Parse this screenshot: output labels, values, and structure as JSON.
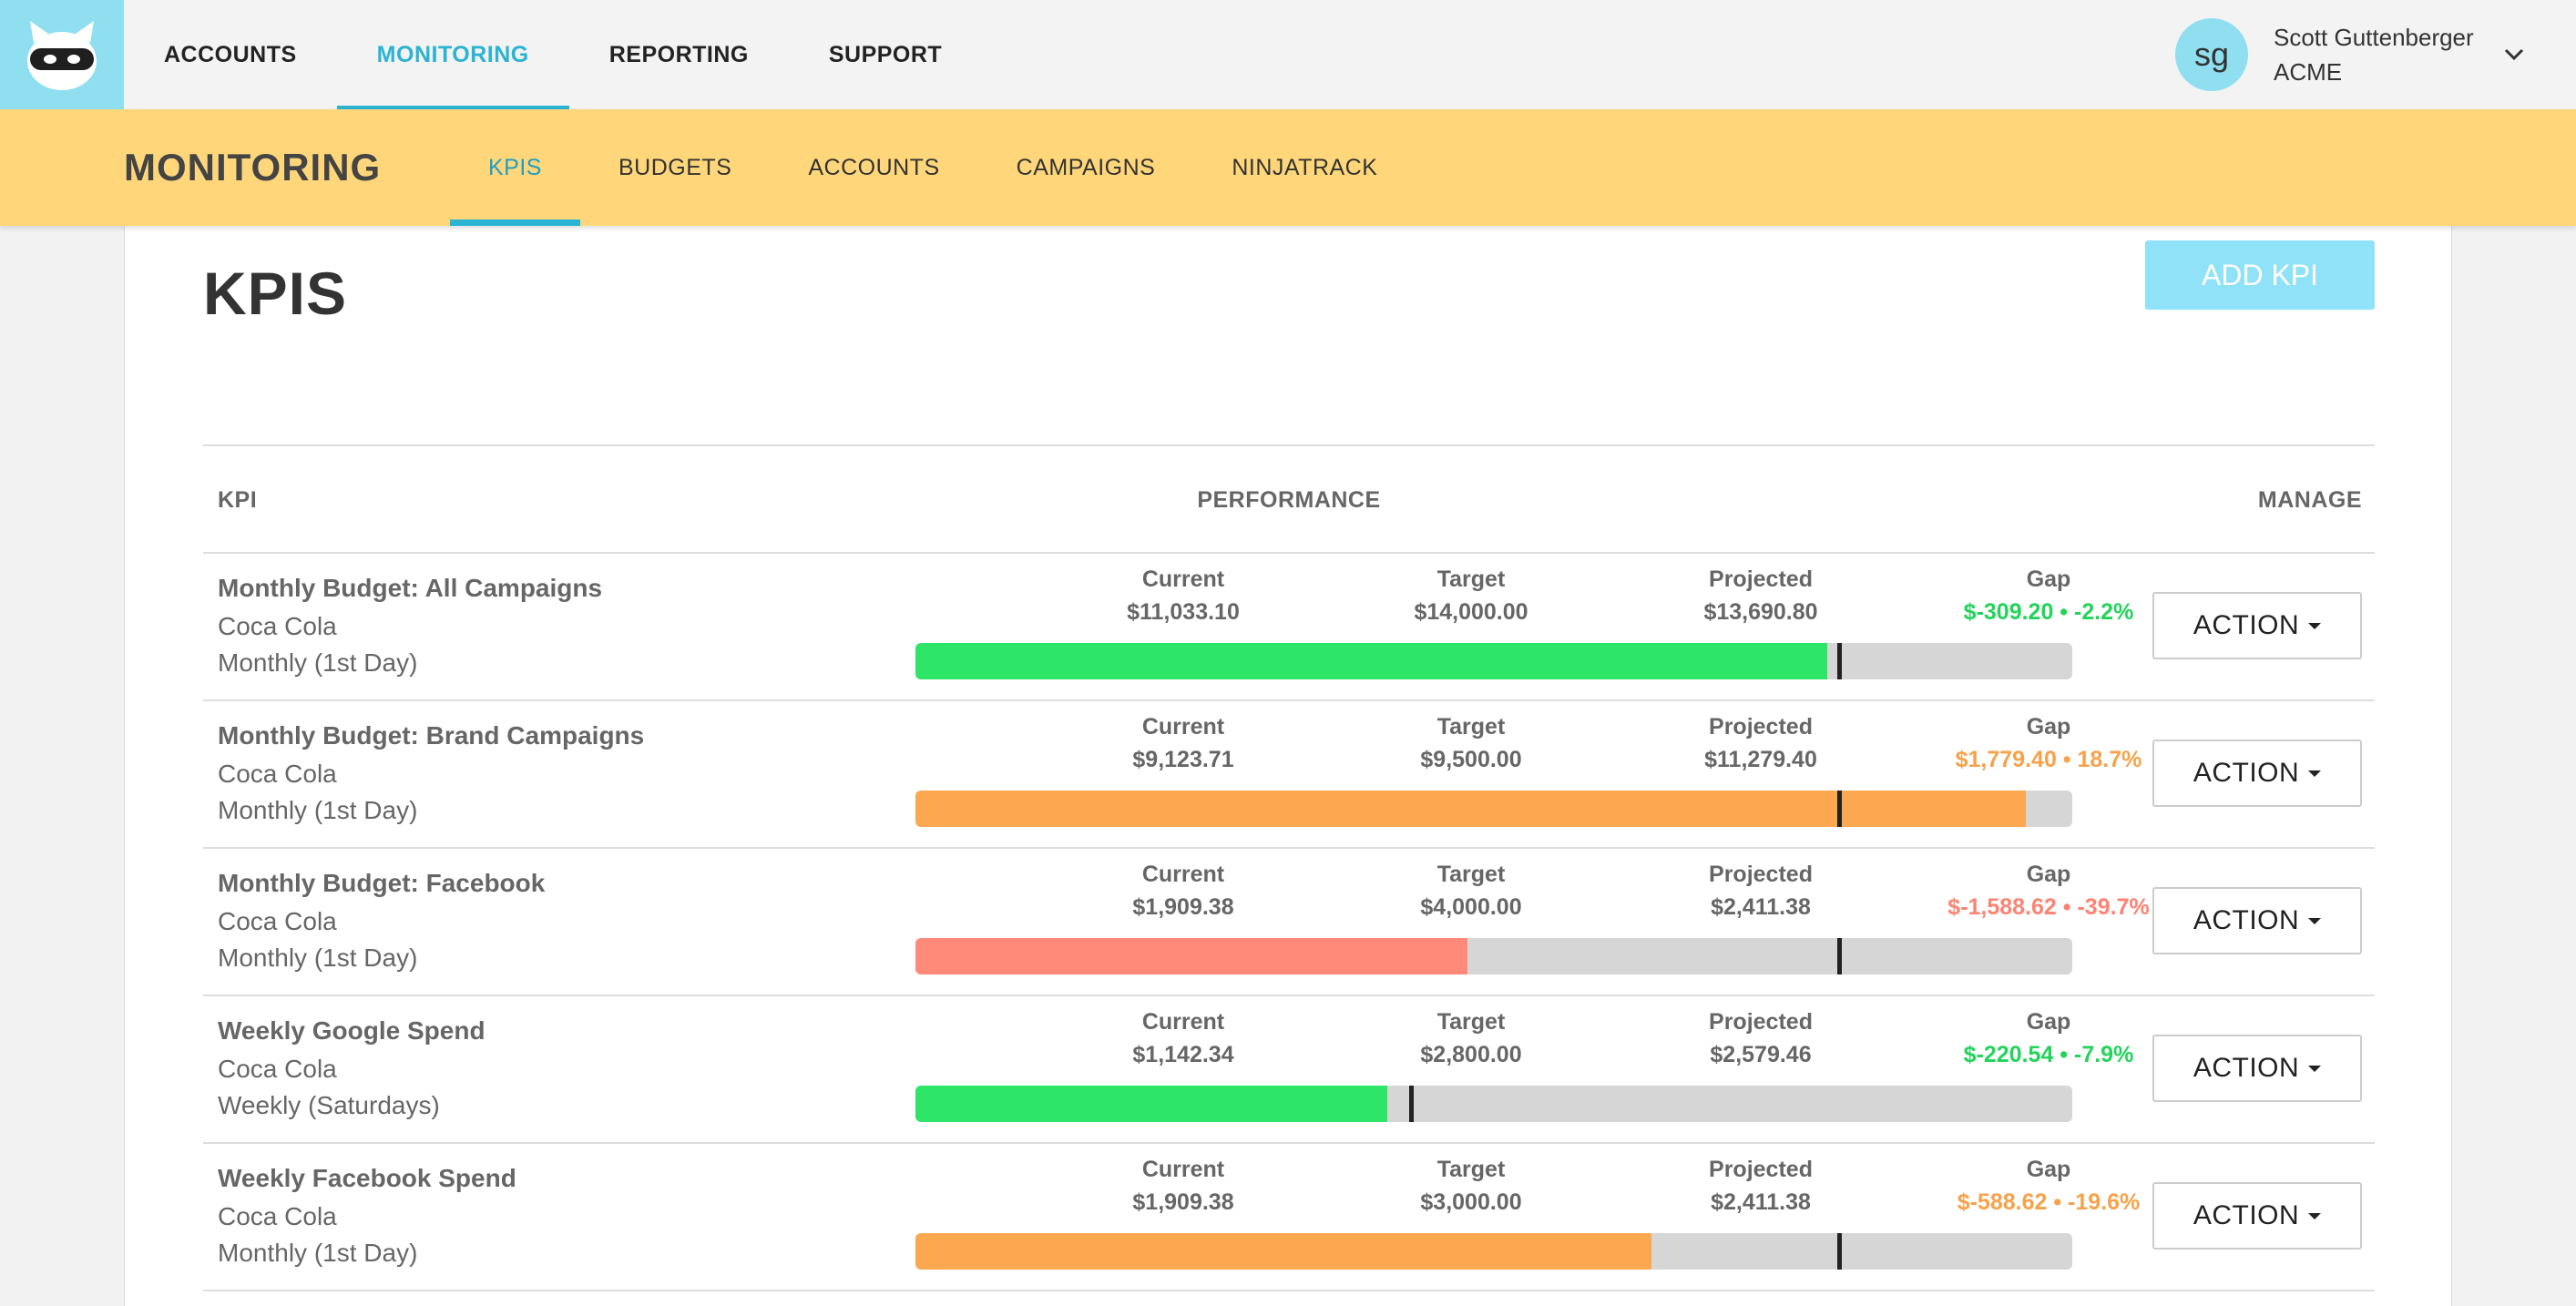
{
  "topnav": {
    "items": [
      {
        "label": "ACCOUNTS",
        "active": false
      },
      {
        "label": "MONITORING",
        "active": true
      },
      {
        "label": "REPORTING",
        "active": false
      },
      {
        "label": "SUPPORT",
        "active": false
      }
    ]
  },
  "user": {
    "initials": "sg",
    "name": "Scott Guttenberger",
    "org": "ACME"
  },
  "subnav": {
    "section_title": "MONITORING",
    "items": [
      {
        "label": "KPIS",
        "active": true
      },
      {
        "label": "BUDGETS",
        "active": false
      },
      {
        "label": "ACCOUNTS",
        "active": false
      },
      {
        "label": "CAMPAIGNS",
        "active": false
      },
      {
        "label": "NINJATRACK",
        "active": false
      }
    ]
  },
  "page": {
    "title": "KPIS",
    "add_button": "ADD KPI"
  },
  "table": {
    "headers": {
      "kpi": "KPI",
      "performance": "PERFORMANCE",
      "manage": "MANAGE"
    },
    "metric_labels": {
      "current": "Current",
      "target": "Target",
      "projected": "Projected",
      "gap": "Gap"
    },
    "action_label": "ACTION",
    "rows": [
      {
        "name": "Monthly Budget: All Campaigns",
        "client": "Coca Cola",
        "schedule": "Monthly (1st Day)",
        "current": "$11,033.10",
        "target": "$14,000.00",
        "projected": "$13,690.80",
        "gap": "$-309.20 • -2.2%",
        "status": "green",
        "progress_fill": 0.788,
        "target_marker": 0.797
      },
      {
        "name": "Monthly Budget: Brand Campaigns",
        "client": "Coca Cola",
        "schedule": "Monthly (1st Day)",
        "current": "$9,123.71",
        "target": "$9,500.00",
        "projected": "$11,279.40",
        "gap": "$1,779.40 • 18.7%",
        "status": "orange",
        "progress_fill": 0.96,
        "target_marker": 0.797
      },
      {
        "name": "Monthly Budget: Facebook",
        "client": "Coca Cola",
        "schedule": "Monthly (1st Day)",
        "current": "$1,909.38",
        "target": "$4,000.00",
        "projected": "$2,411.38",
        "gap": "$-1,588.62 • -39.7%",
        "status": "red",
        "progress_fill": 0.477,
        "target_marker": 0.797
      },
      {
        "name": "Weekly Google Spend",
        "client": "Coca Cola",
        "schedule": "Weekly (Saturdays)",
        "current": "$1,142.34",
        "target": "$2,800.00",
        "projected": "$2,579.46",
        "gap": "$-220.54 • -7.9%",
        "status": "green",
        "progress_fill": 0.408,
        "target_marker": 0.427
      },
      {
        "name": "Weekly Facebook Spend",
        "client": "Coca Cola",
        "schedule": "Monthly (1st Day)",
        "current": "$1,909.38",
        "target": "$3,000.00",
        "projected": "$2,411.38",
        "gap": "$-588.62 • -19.6%",
        "status": "orange",
        "progress_fill": 0.636,
        "target_marker": 0.797
      }
    ]
  },
  "colors": {
    "accent": "#2bb3d4",
    "subbar": "#ffd77a",
    "green": "#2de566",
    "orange": "#fba850",
    "red": "#ff8a7a"
  }
}
